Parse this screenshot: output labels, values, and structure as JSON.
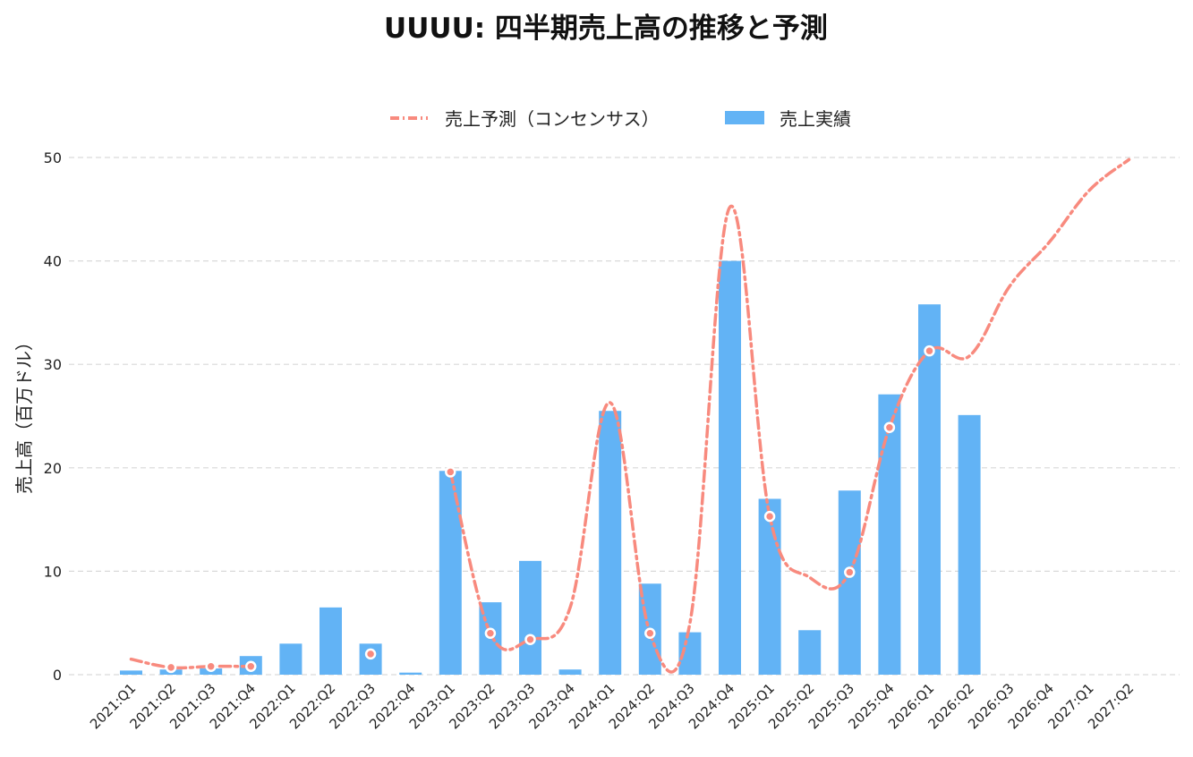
{
  "chart_data": {
    "type": "bar",
    "title": "UUUU: 四半期売上高の推移と予測",
    "xlabel": "",
    "ylabel": "売上高（百万ドル）",
    "ylim": [
      0,
      50
    ],
    "yticks": [
      0,
      10,
      20,
      30,
      40,
      50
    ],
    "grid": true,
    "legend_position": "top-center",
    "categories": [
      "2021:Q1",
      "2021:Q2",
      "2021:Q3",
      "2021:Q4",
      "2022:Q1",
      "2022:Q2",
      "2022:Q3",
      "2022:Q4",
      "2023:Q1",
      "2023:Q2",
      "2023:Q3",
      "2023:Q4",
      "2024:Q1",
      "2024:Q2",
      "2024:Q3",
      "2024:Q4",
      "2025:Q1",
      "2025:Q2",
      "2025:Q3",
      "2025:Q4",
      "2026:Q1",
      "2026:Q2",
      "2026:Q3",
      "2026:Q4",
      "2027:Q1",
      "2027:Q2"
    ],
    "series": [
      {
        "name": "売上予測（コンセンサス）",
        "type": "line",
        "color": "#f88a7e",
        "values": [
          1.5,
          0.7,
          0.8,
          0.8,
          null,
          null,
          2.0,
          null,
          19.6,
          4.0,
          3.4,
          6.5,
          26.3,
          4.0,
          5.0,
          45.2,
          15.3,
          9.4,
          9.9,
          23.9,
          31.3,
          30.8,
          37.5,
          41.8,
          46.8,
          49.8
        ],
        "segments": [
          [
            0,
            3
          ],
          [
            8,
            25
          ]
        ],
        "markers": [
          1,
          2,
          3,
          6,
          8,
          9,
          10,
          13,
          16,
          18,
          19,
          20
        ]
      },
      {
        "name": "売上実績",
        "type": "bar",
        "color": "#62b3f5",
        "values": [
          0.4,
          0.5,
          0.6,
          1.8,
          3.0,
          6.5,
          3.0,
          0.2,
          19.7,
          7.0,
          11.0,
          0.5,
          25.5,
          8.8,
          4.1,
          40.0,
          17.0,
          4.3,
          17.8,
          27.1,
          35.8,
          25.1,
          null,
          null,
          null,
          null
        ]
      }
    ]
  }
}
